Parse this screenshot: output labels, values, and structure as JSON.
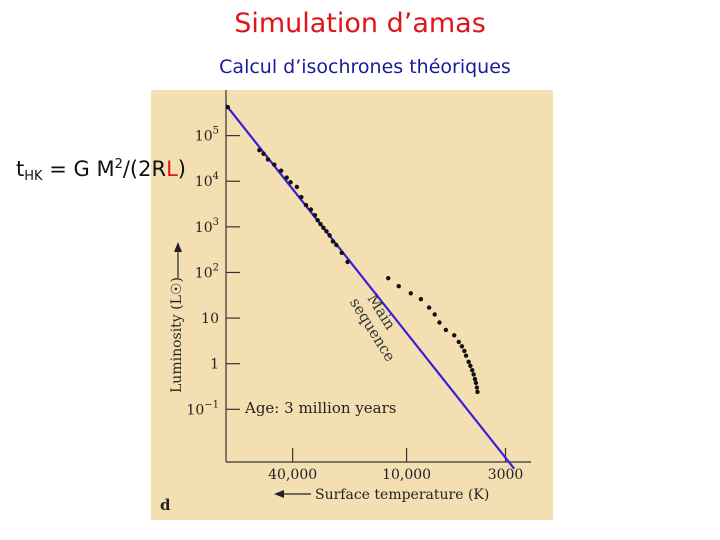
{
  "slide": {
    "title": "Simulation d’amas",
    "subtitle": "Calcul d’isochrones théoriques",
    "formula": {
      "lhs": "t",
      "lhs_sub": "HK",
      "mid": " = G M",
      "sup": "2",
      "open": "/(2R",
      "red_symbol": "L",
      "close": ")"
    }
  },
  "colors": {
    "title": "#e0151a",
    "subtitle": "#1a1a9a",
    "figure_background": "#f4dfb2",
    "main_sequence_line": "#3a1fd8",
    "stars": "#111111"
  },
  "chart_data": {
    "type": "scatter",
    "panel_label": "d",
    "xlabel": "Surface temperature (K)",
    "ylabel": "Luminosity (L☉)",
    "x_scale": "log-reversed",
    "y_scale": "log",
    "x_ticks": [
      {
        "value": 40000,
        "label": "40,000"
      },
      {
        "value": 10000,
        "label": "10,000"
      },
      {
        "value": 3000,
        "label": "3000"
      }
    ],
    "y_ticks": [
      {
        "exp": 5,
        "label": "10",
        "sup": "5"
      },
      {
        "exp": 4,
        "label": "10",
        "sup": "4"
      },
      {
        "exp": 3,
        "label": "10",
        "sup": "3"
      },
      {
        "exp": 2,
        "label": "10",
        "sup": "2"
      },
      {
        "exp": 1,
        "label": "10",
        "sup": ""
      },
      {
        "exp": 0,
        "label": "1",
        "sup": ""
      },
      {
        "exp": -1,
        "label": "10",
        "sup": "−1"
      }
    ],
    "xlim": [
      90000,
      2200
    ],
    "ylim": [
      0.007,
      1000000
    ],
    "annotation": "Age: 3 million years",
    "main_sequence": {
      "label_line1": "Main",
      "label_line2": "sequence",
      "points": [
        [
          90000,
          470000
        ],
        [
          2700,
          0.005
        ]
      ]
    },
    "series": [
      {
        "points": [
          [
            88000,
            420000
          ],
          [
            60000,
            48000
          ],
          [
            57000,
            40000
          ],
          [
            54000,
            30000
          ],
          [
            50000,
            23000
          ],
          [
            46000,
            17000
          ],
          [
            43000,
            12000
          ],
          [
            41000,
            9500
          ],
          [
            38000,
            7500
          ],
          [
            36000,
            4500
          ],
          [
            34000,
            3000
          ],
          [
            32000,
            2400
          ],
          [
            30500,
            1800
          ],
          [
            29500,
            1400
          ],
          [
            28500,
            1150
          ],
          [
            27500,
            950
          ],
          [
            26500,
            800
          ],
          [
            25500,
            650
          ],
          [
            24500,
            480
          ],
          [
            23500,
            400
          ],
          [
            22000,
            270
          ],
          [
            20500,
            170
          ],
          [
            12500,
            75
          ],
          [
            11000,
            50
          ],
          [
            9500,
            35
          ],
          [
            8400,
            26
          ],
          [
            7600,
            17
          ],
          [
            7100,
            12
          ],
          [
            6700,
            8
          ],
          [
            6200,
            5.5
          ],
          [
            5600,
            4.2
          ],
          [
            5300,
            3
          ],
          [
            5100,
            2.4
          ],
          [
            4950,
            1.9
          ],
          [
            4850,
            1.5
          ],
          [
            4700,
            1.1
          ],
          [
            4600,
            0.9
          ],
          [
            4500,
            0.72
          ],
          [
            4420,
            0.58
          ],
          [
            4350,
            0.46
          ],
          [
            4300,
            0.38
          ],
          [
            4250,
            0.3
          ],
          [
            4220,
            0.24
          ]
        ]
      }
    ]
  }
}
